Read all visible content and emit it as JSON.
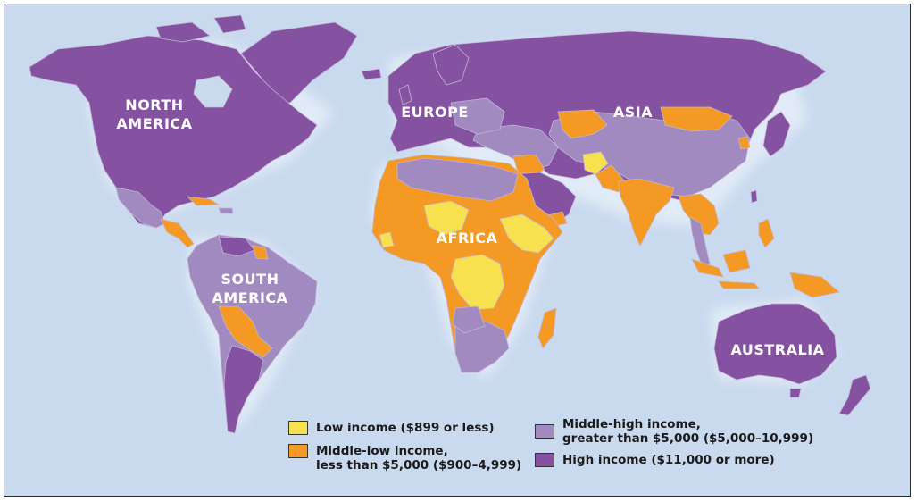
{
  "map": {
    "colors": {
      "ocean": "#c9d9ee",
      "coast_glow": "#e4edf8",
      "low": "#f7e14f",
      "middle_low": "#f49a24",
      "middle_high": "#a08ac0",
      "high": "#8552a1",
      "borders": "#c4b5d6"
    },
    "labels": {
      "north_america": [
        "NORTH",
        "AMERICA"
      ],
      "south_america": [
        "SOUTH",
        "AMERICA"
      ],
      "europe": "EUROPE",
      "asia": "ASIA",
      "africa": "AFRICA",
      "australia": "AUSTRALIA"
    }
  },
  "legend": {
    "low": {
      "line1": "Low income ($899 or less)",
      "color": "#f7e14f"
    },
    "middle_low": {
      "line1": "Middle-low income,",
      "line2": "less than $5,000 ($900–4,999)",
      "color": "#f49a24"
    },
    "middle_high": {
      "line1": "Middle-high income,",
      "line2": "greater than $5,000 ($5,000–10,999)",
      "color": "#a08ac0"
    },
    "high": {
      "line1": "High income ($11,000 or more)",
      "color": "#8552a1"
    }
  }
}
